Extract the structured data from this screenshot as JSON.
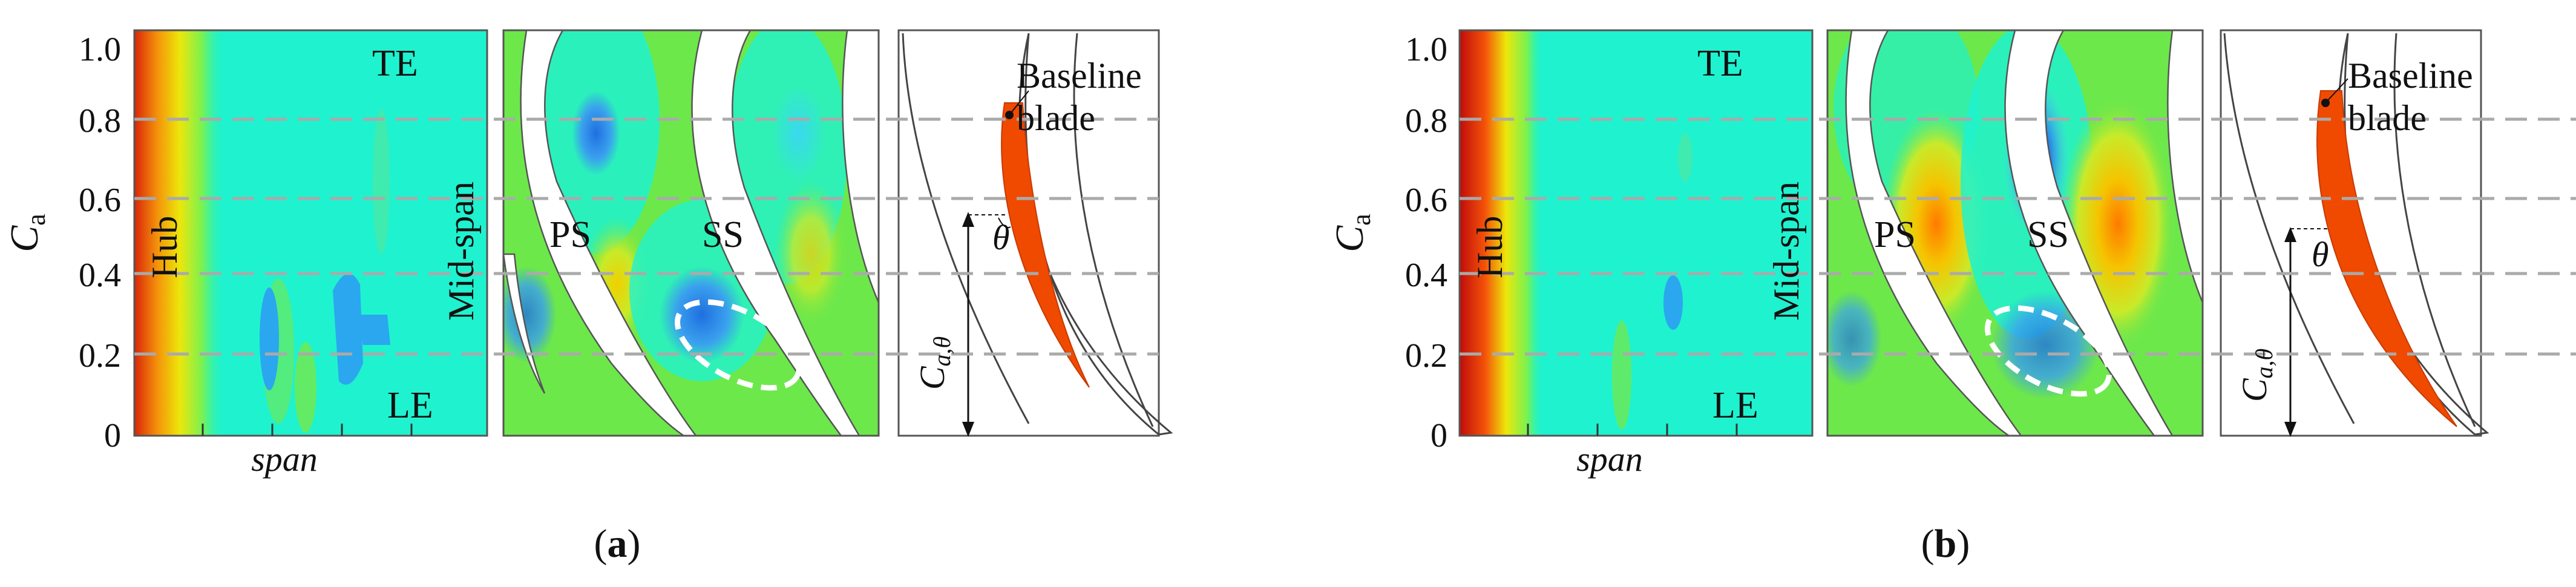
{
  "figure": {
    "panels": [
      {
        "caption_prefix": "(",
        "caption_letter": "a",
        "caption_suffix": ")",
        "y_axis_main": "C",
        "y_axis_sub": "a",
        "x_axis": "span",
        "y_ticks": [
          "0",
          "0.2",
          "0.4",
          "0.6",
          "0.8",
          "1.0"
        ],
        "labels": {
          "te": "TE",
          "le": "LE",
          "hub": "Hub",
          "mid_span": "Mid-span",
          "ps": "PS",
          "ss": "SS",
          "baseline_line1": "Baseline",
          "baseline_line2": "blade",
          "theta": "θ",
          "ca_main": "C",
          "ca_sub": "a,θ"
        }
      },
      {
        "caption_prefix": "(",
        "caption_letter": "b",
        "caption_suffix": ")",
        "y_axis_main": "C",
        "y_axis_sub": "a",
        "x_axis": "span",
        "y_ticks": [
          "0",
          "0.2",
          "0.4",
          "0.6",
          "0.8",
          "1.0"
        ],
        "labels": {
          "te": "TE",
          "le": "LE",
          "hub": "Hub",
          "mid_span": "Mid-span",
          "ps": "PS",
          "ss": "SS",
          "baseline_line1": "Baseline",
          "baseline_line2": "blade",
          "theta": "θ",
          "ca_main": "C",
          "ca_sub": "a,θ"
        }
      }
    ]
  }
}
